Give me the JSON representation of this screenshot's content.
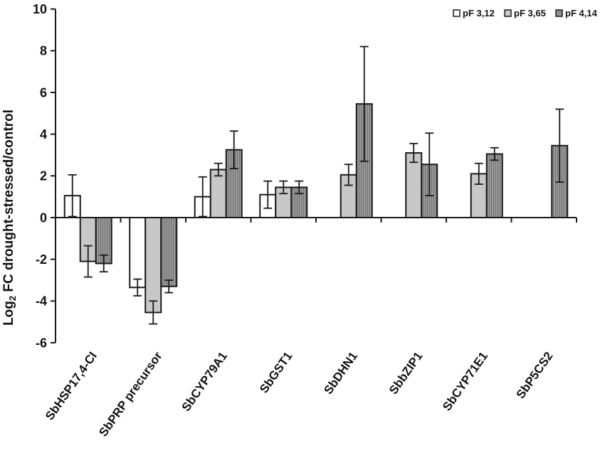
{
  "chart_data": {
    "type": "bar",
    "title": "",
    "ylabel_parts": [
      "Log",
      "2",
      " FC drought-stressed/control"
    ],
    "ylim": [
      -6,
      10
    ],
    "yticks": [
      10,
      8,
      6,
      4,
      2,
      0,
      -2,
      -4,
      -6
    ],
    "grid": false,
    "legend_position": "top-right",
    "categories": [
      "SbHSP17,4-CI",
      "SbPRP precursor",
      "SbCYP79A1",
      "SbGST1",
      "SbDHN1",
      "SbbZIP1",
      "SbCYP71E1",
      "SbP5CS2"
    ],
    "series": [
      {
        "name": "pF 3,12",
        "color": "#ffffff",
        "values": [
          1.05,
          -3.35,
          1.0,
          1.1,
          null,
          null,
          null,
          null
        ],
        "errors": [
          1.0,
          0.4,
          0.95,
          0.65,
          null,
          null,
          null,
          null
        ]
      },
      {
        "name": "pF 3,65",
        "color": "#c9c9c9",
        "values": [
          -2.1,
          -4.55,
          2.3,
          1.45,
          2.05,
          3.1,
          2.1,
          null
        ],
        "errors": [
          0.75,
          0.55,
          0.3,
          0.3,
          0.5,
          0.45,
          0.5,
          null
        ]
      },
      {
        "name": "pF 4,14",
        "color": "#8f8f8f",
        "values": [
          -2.2,
          -3.3,
          3.25,
          1.45,
          5.45,
          2.55,
          3.05,
          3.45
        ],
        "errors": [
          0.4,
          0.3,
          0.9,
          0.3,
          2.75,
          1.5,
          0.3,
          1.75
        ]
      }
    ],
    "axis_color": "#1a1a1a"
  }
}
